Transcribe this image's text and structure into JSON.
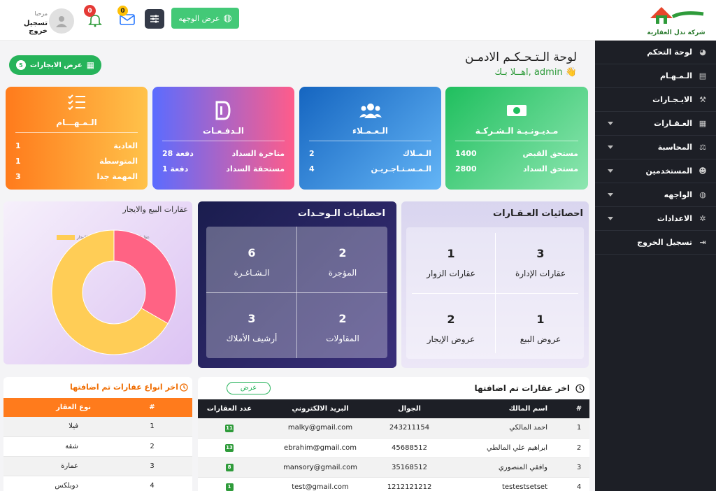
{
  "topbar": {
    "logo_text": "شركة ندل العقارية",
    "view_site": "عرض الوجهه",
    "notif_count": "0",
    "mail_count": "0",
    "greeting": "مرحبا",
    "logout": "تسجيل خروج"
  },
  "page": {
    "title": "لوحة الـتـحـكـم الادمـن",
    "welcome": "اهــلا بـك, admin 👋",
    "rentals_btn": "عرض الايجارات",
    "rentals_count": "5"
  },
  "sidebar": {
    "items": [
      {
        "label": "لوحة التحكم",
        "icon": "◕"
      },
      {
        "label": "الـمـهـام",
        "icon": "▤"
      },
      {
        "label": "الايـجـارات",
        "icon": "⚒"
      },
      {
        "label": "العـقـارات",
        "icon": "▦"
      },
      {
        "label": "المحاسبة",
        "icon": "⚖"
      },
      {
        "label": "المستخدمين",
        "icon": "☻"
      },
      {
        "label": "الواجهه",
        "icon": "◍"
      },
      {
        "label": "الاعدادات",
        "icon": "✲"
      },
      {
        "label": "تسجيل الخروج",
        "icon": "⇥"
      }
    ]
  },
  "cards": {
    "company": {
      "title": "مـديـونـيـة الـشـركـة",
      "r1_label": "مستحق القبض",
      "r1_value": "1400",
      "r2_label": "مستحق السداد",
      "r2_value": "2800"
    },
    "clients": {
      "title": "الـعـمـلاء",
      "r1_label": "الـمـلاك",
      "r1_value": "2",
      "r2_label": "الـمـسـتـاجـريـن",
      "r2_value": "4"
    },
    "payments": {
      "title": "الـدفـعـات",
      "r1_label": "متاخرة السداد",
      "r1_value": "28 دفعة",
      "r2_label": "مستحقة السداد",
      "r2_value": "1 دفعة"
    },
    "tasks": {
      "title": "الـمـهـــام",
      "r1_label": "العادية",
      "r1_value": "1",
      "r2_label": "المتوسطة",
      "r2_value": "1",
      "r3_label": "المهمة جدا",
      "r3_value": "3"
    }
  },
  "property_stats": {
    "title": "احصائيات العـقـارات",
    "tiles": [
      {
        "n": "3",
        "label": "عقارات الإدارة"
      },
      {
        "n": "1",
        "label": "عقارات الزوار"
      },
      {
        "n": "1",
        "label": "عروض البيع"
      },
      {
        "n": "2",
        "label": "عروض الإيجار"
      }
    ]
  },
  "unit_stats": {
    "title": "احصائيات الـوحـدات",
    "tiles": [
      {
        "n": "2",
        "label": "المؤجرة"
      },
      {
        "n": "6",
        "label": "الـشـاغـرة"
      },
      {
        "n": "2",
        "label": "المقاولات"
      },
      {
        "n": "3",
        "label": "أرشيف الأملاك"
      }
    ]
  },
  "chart_data": {
    "type": "pie",
    "title": "عقارات البيع والايجار",
    "legend": [
      "عقارات البيع",
      "عقارات الإيجار"
    ],
    "values": [
      1,
      2
    ],
    "colors": [
      "#ff6384",
      "#ffcd56"
    ]
  },
  "latest_props": {
    "title": "اخر عقارات تم اضافتها",
    "view": "عرض",
    "headers": [
      "#",
      "اسم المالك",
      "الجوال",
      "البريد الالكتروني",
      "عدد العقارات"
    ],
    "rows": [
      {
        "i": "1",
        "owner": "احمد المالكي",
        "phone": "243211154",
        "email": "malky@gmail.com",
        "count": "11"
      },
      {
        "i": "2",
        "owner": "ابراهيم علي المالطي",
        "phone": "45688512",
        "email": "ebrahim@gmail.com",
        "count": "13"
      },
      {
        "i": "3",
        "owner": "وافقي المنصوري",
        "phone": "35168512",
        "email": "mansory@gmail.com",
        "count": "8"
      },
      {
        "i": "4",
        "owner": "testestsetset",
        "phone": "1212121212",
        "email": "test@gmail.com",
        "count": "1"
      }
    ]
  },
  "latest_types": {
    "title": "اخر انواع عقارات تم اضافتها",
    "headers": [
      "#",
      "نوع العقار"
    ],
    "rows": [
      {
        "i": "1",
        "type": "فيلا"
      },
      {
        "i": "2",
        "type": "شقة"
      },
      {
        "i": "3",
        "type": "عمارة"
      },
      {
        "i": "4",
        "type": "دوبلكس"
      }
    ]
  }
}
